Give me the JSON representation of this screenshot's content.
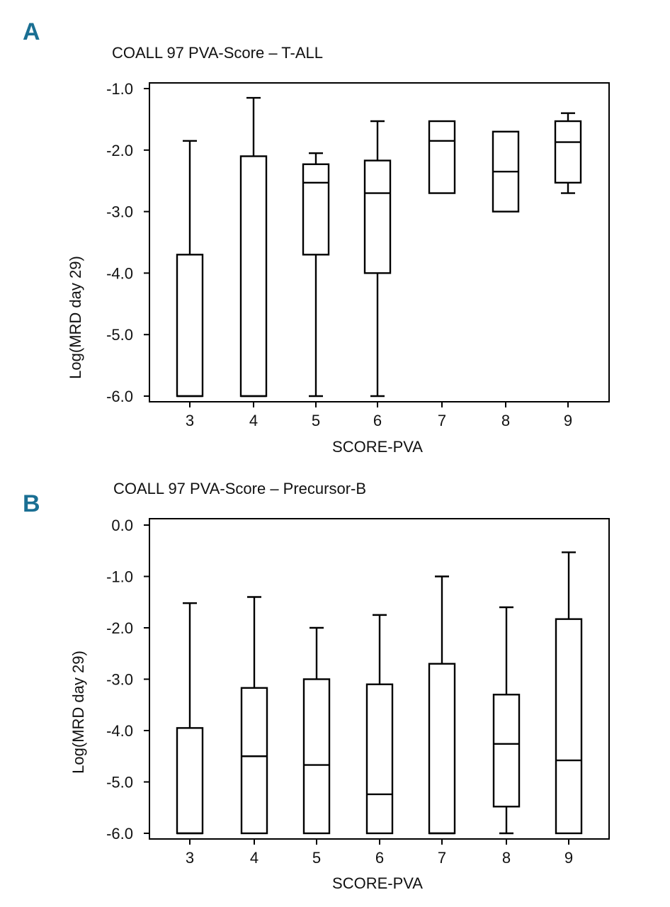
{
  "figure": {
    "colors": {
      "panel_label": "#1a6f93",
      "ink": "#000000",
      "background": "#ffffff"
    }
  },
  "chart_data": [
    {
      "type": "boxplot",
      "panel_label": "A",
      "title": "COALL 97 PVA-Score – T-ALL",
      "xlabel": "SCORE-PVA",
      "ylabel": "Log(MRD day 29)",
      "ylim": [
        -6.0,
        -1.0
      ],
      "yticks": [
        "-1.0",
        "-2.0",
        "-3.0",
        "-4.0",
        "-5.0",
        "-6.0"
      ],
      "ytick_values": [
        -1.0,
        -2.0,
        -3.0,
        -4.0,
        -5.0,
        -6.0
      ],
      "categories": [
        "3",
        "4",
        "5",
        "6",
        "7",
        "8",
        "9"
      ],
      "boxes": [
        {
          "category": "3",
          "whisker_low": -6.0,
          "q1": -6.0,
          "median": -6.0,
          "q3": -3.7,
          "whisker_high": -1.85
        },
        {
          "category": "4",
          "whisker_low": -6.0,
          "q1": -6.0,
          "median": -6.0,
          "q3": -2.1,
          "whisker_high": -1.15
        },
        {
          "category": "5",
          "whisker_low": -6.0,
          "q1": -3.7,
          "median": -2.53,
          "q3": -2.23,
          "whisker_high": -2.05
        },
        {
          "category": "6",
          "whisker_low": -6.0,
          "q1": -4.0,
          "median": -2.7,
          "q3": -2.17,
          "whisker_high": -1.53
        },
        {
          "category": "7",
          "whisker_low": -2.7,
          "q1": -2.7,
          "median": -1.85,
          "q3": -1.53,
          "whisker_high": -1.53
        },
        {
          "category": "8",
          "whisker_low": -3.0,
          "q1": -3.0,
          "median": -2.35,
          "q3": -1.7,
          "whisker_high": -1.7
        },
        {
          "category": "9",
          "whisker_low": -2.7,
          "q1": -2.53,
          "median": -1.87,
          "q3": -1.53,
          "whisker_high": -1.4
        }
      ]
    },
    {
      "type": "boxplot",
      "panel_label": "B",
      "title": "COALL 97 PVA-Score – Precursor-B",
      "xlabel": "SCORE-PVA",
      "ylabel": "Log(MRD day 29)",
      "ylim": [
        -6.0,
        0.0
      ],
      "yticks": [
        "0.0",
        "-1.0",
        "-2.0",
        "-3.0",
        "-4.0",
        "-5.0",
        "-6.0"
      ],
      "ytick_values": [
        0.0,
        -1.0,
        -2.0,
        -3.0,
        -4.0,
        -5.0,
        -6.0
      ],
      "categories": [
        "3",
        "4",
        "5",
        "6",
        "7",
        "8",
        "9"
      ],
      "boxes": [
        {
          "category": "3",
          "whisker_low": -6.0,
          "q1": -6.0,
          "median": -6.0,
          "q3": -3.95,
          "whisker_high": -1.52
        },
        {
          "category": "4",
          "whisker_low": -6.0,
          "q1": -6.0,
          "median": -4.5,
          "q3": -3.17,
          "whisker_high": -1.4
        },
        {
          "category": "5",
          "whisker_low": -6.0,
          "q1": -6.0,
          "median": -4.67,
          "q3": -3.0,
          "whisker_high": -2.0
        },
        {
          "category": "6",
          "whisker_low": -6.0,
          "q1": -6.0,
          "median": -5.24,
          "q3": -3.1,
          "whisker_high": -1.75
        },
        {
          "category": "7",
          "whisker_low": -6.0,
          "q1": -6.0,
          "median": -6.0,
          "q3": -2.7,
          "whisker_high": -1.0
        },
        {
          "category": "8",
          "whisker_low": -6.0,
          "q1": -5.48,
          "median": -4.26,
          "q3": -3.3,
          "whisker_high": -1.6
        },
        {
          "category": "9",
          "whisker_low": -6.0,
          "q1": -6.0,
          "median": -4.58,
          "q3": -1.83,
          "whisker_high": -0.53
        }
      ]
    }
  ]
}
